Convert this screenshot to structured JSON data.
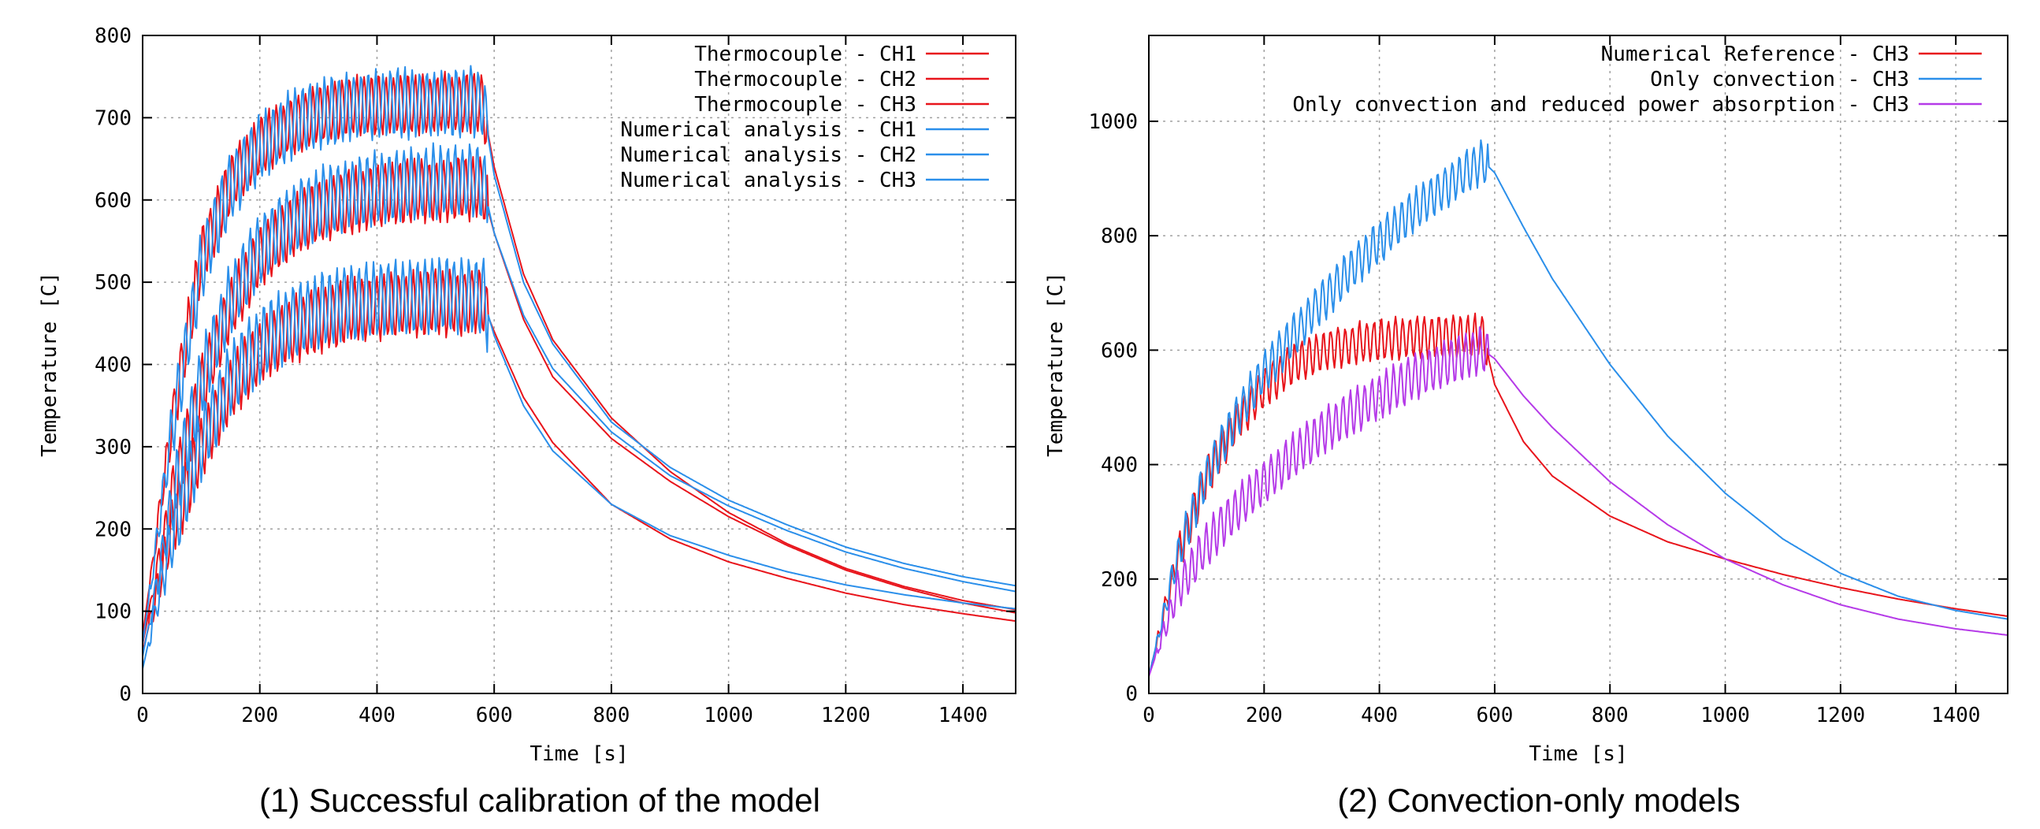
{
  "chart_data": [
    {
      "type": "line",
      "caption": "(1) Successful calibration of the model",
      "title": "",
      "xlabel": "Time [s]",
      "ylabel": "Temperature [C]",
      "xlim": [
        0,
        1490
      ],
      "ylim": [
        0,
        800
      ],
      "xticks": [
        0,
        200,
        400,
        600,
        800,
        1000,
        1200,
        1400
      ],
      "yticks": [
        0,
        100,
        200,
        300,
        400,
        500,
        600,
        700,
        800
      ],
      "grid": true,
      "legend_position": "top-right",
      "colors": {
        "thermocouple": "#e8141b",
        "numerical": "#2b8fea"
      },
      "series": [
        {
          "name": "Thermocouple - CH1",
          "color": "#e8141b",
          "x": [
            0,
            50,
            100,
            150,
            200,
            250,
            300,
            350,
            400,
            450,
            500,
            550,
            580,
            600,
            650,
            700,
            800,
            900,
            1000,
            1100,
            1200,
            1300,
            1400,
            1490
          ],
          "y": [
            70,
            330,
            530,
            620,
            665,
            690,
            705,
            712,
            716,
            717,
            718,
            718,
            718,
            640,
            510,
            430,
            335,
            270,
            220,
            182,
            152,
            130,
            113,
            102
          ]
        },
        {
          "name": "Thermocouple - CH2",
          "color": "#e8141b",
          "x": [
            0,
            50,
            100,
            150,
            200,
            250,
            300,
            350,
            400,
            450,
            500,
            550,
            580,
            600,
            650,
            700,
            800,
            900,
            1000,
            1100,
            1200,
            1300,
            1400,
            1490
          ],
          "y": [
            60,
            240,
            370,
            470,
            530,
            565,
            585,
            598,
            605,
            610,
            612,
            614,
            614,
            560,
            455,
            385,
            310,
            258,
            215,
            180,
            150,
            128,
            110,
            98
          ]
        },
        {
          "name": "Thermocouple - CH3",
          "color": "#e8141b",
          "x": [
            0,
            50,
            100,
            150,
            200,
            250,
            300,
            350,
            400,
            450,
            500,
            550,
            580,
            600,
            650,
            700,
            800,
            900,
            1000,
            1100,
            1200,
            1300,
            1400,
            1490
          ],
          "y": [
            50,
            200,
            300,
            370,
            415,
            440,
            455,
            465,
            470,
            473,
            475,
            476,
            476,
            440,
            360,
            305,
            230,
            188,
            160,
            140,
            122,
            108,
            97,
            88
          ]
        },
        {
          "name": "Numerical analysis - CH1",
          "color": "#2b8fea",
          "x": [
            0,
            50,
            100,
            150,
            200,
            250,
            300,
            350,
            400,
            450,
            500,
            550,
            580,
            600,
            650,
            700,
            800,
            900,
            1000,
            1100,
            1200,
            1300,
            1400,
            1490
          ],
          "y": [
            60,
            320,
            520,
            615,
            665,
            690,
            705,
            712,
            716,
            718,
            719,
            720,
            720,
            630,
            500,
            425,
            330,
            275,
            235,
            205,
            178,
            158,
            142,
            131
          ]
        },
        {
          "name": "Numerical analysis - CH2",
          "color": "#2b8fea",
          "x": [
            0,
            50,
            100,
            150,
            200,
            250,
            300,
            350,
            400,
            450,
            500,
            550,
            580,
            600,
            650,
            700,
            800,
            900,
            1000,
            1100,
            1200,
            1300,
            1400,
            1490
          ],
          "y": [
            45,
            230,
            380,
            480,
            540,
            575,
            595,
            608,
            615,
            620,
            622,
            623,
            623,
            560,
            460,
            395,
            318,
            265,
            228,
            198,
            172,
            152,
            136,
            124
          ]
        },
        {
          "name": "Numerical analysis - CH3",
          "color": "#2b8fea",
          "x": [
            0,
            50,
            100,
            150,
            200,
            250,
            300,
            350,
            400,
            450,
            500,
            550,
            580,
            600,
            650,
            700,
            800,
            900,
            1000,
            1100,
            1200,
            1300,
            1400,
            1490
          ],
          "y": [
            30,
            190,
            305,
            380,
            425,
            450,
            465,
            475,
            480,
            482,
            484,
            485,
            485,
            435,
            350,
            295,
            230,
            192,
            168,
            148,
            132,
            120,
            110,
            103
          ]
        }
      ]
    },
    {
      "type": "line",
      "caption": "(2) Convection-only models",
      "title": "",
      "xlabel": "Time [s]",
      "ylabel": "Temperature [C]",
      "xlim": [
        0,
        1490
      ],
      "ylim": [
        0,
        1150
      ],
      "xticks": [
        0,
        200,
        400,
        600,
        800,
        1000,
        1200,
        1400
      ],
      "yticks": [
        0,
        200,
        400,
        600,
        800,
        1000
      ],
      "grid": true,
      "legend_position": "top-right",
      "colors": {
        "reference": "#e8141b",
        "convection": "#2b8fea",
        "reduced": "#b53ae8"
      },
      "series": [
        {
          "name": "Numerical Reference - CH3",
          "color": "#e8141b",
          "x": [
            0,
            50,
            100,
            150,
            200,
            250,
            300,
            350,
            400,
            450,
            500,
            550,
            580,
            600,
            650,
            700,
            800,
            900,
            1000,
            1100,
            1200,
            1300,
            1400,
            1490
          ],
          "y": [
            30,
            240,
            380,
            470,
            535,
            575,
            598,
            610,
            618,
            622,
            624,
            625,
            625,
            540,
            440,
            380,
            310,
            265,
            235,
            208,
            185,
            165,
            148,
            135
          ]
        },
        {
          "name": "Only convection - CH3",
          "color": "#2b8fea",
          "x": [
            0,
            50,
            100,
            150,
            200,
            250,
            300,
            350,
            400,
            450,
            500,
            550,
            580,
            600,
            650,
            700,
            800,
            900,
            1000,
            1100,
            1200,
            1300,
            1400,
            1490
          ],
          "y": [
            30,
            240,
            380,
            480,
            560,
            625,
            685,
            740,
            790,
            835,
            875,
            910,
            930,
            910,
            815,
            725,
            575,
            450,
            350,
            270,
            210,
            170,
            145,
            130
          ]
        },
        {
          "name": "Only convection and reduced power absorption - CH3",
          "color": "#b53ae8",
          "x": [
            0,
            50,
            100,
            150,
            200,
            250,
            300,
            350,
            400,
            450,
            500,
            550,
            580,
            600,
            650,
            700,
            800,
            900,
            1000,
            1100,
            1200,
            1300,
            1400,
            1490
          ],
          "y": [
            30,
            180,
            260,
            320,
            370,
            415,
            455,
            490,
            520,
            548,
            570,
            590,
            600,
            585,
            520,
            465,
            370,
            295,
            235,
            190,
            155,
            130,
            113,
            102
          ]
        }
      ]
    }
  ]
}
